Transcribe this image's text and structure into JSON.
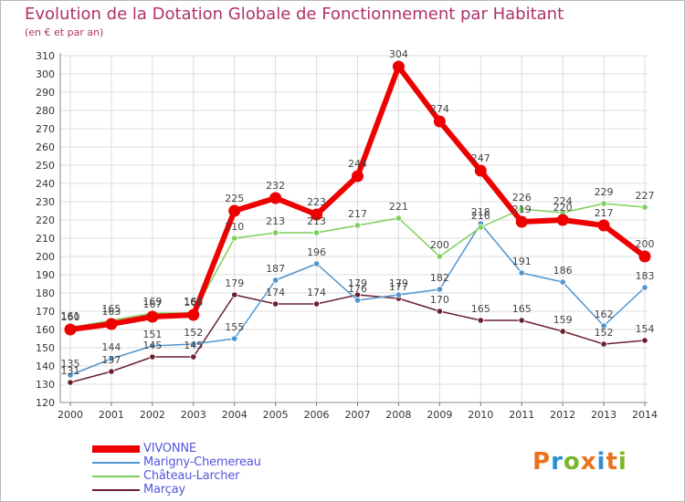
{
  "title": "Evolution de la Dotation Globale de Fonctionnement par Habitant",
  "subtitle": "(en € et par an)",
  "logo": {
    "text": "Proxiti",
    "letters": [
      "P",
      "r",
      "o",
      "x",
      "i",
      "t",
      "i"
    ],
    "colors": [
      "#e8731c",
      "#2d8fd6",
      "#7ab728",
      "#e8731c",
      "#2d8fd6",
      "#e8731c",
      "#7ab728"
    ]
  },
  "chart_data": {
    "type": "line",
    "title": "Evolution de la Dotation Globale de Fonctionnement par Habitant",
    "subtitle": "(en € et par an)",
    "x": [
      "2000",
      "2001",
      "2002",
      "2003",
      "2004",
      "2005",
      "2006",
      "2007",
      "2008",
      "2009",
      "2010",
      "2011",
      "2012",
      "2013",
      "2014"
    ],
    "ylim": [
      120,
      310
    ],
    "yticks": [
      120,
      130,
      140,
      150,
      160,
      170,
      180,
      190,
      200,
      210,
      220,
      230,
      240,
      250,
      260,
      270,
      280,
      290,
      300,
      310
    ],
    "grid": true,
    "legend_position": "bottom-left",
    "series": [
      {
        "name": "Marçay",
        "color": "#6b1f2e",
        "values": [
          131,
          137,
          145,
          145,
          179,
          174,
          174,
          179,
          177,
          170,
          165,
          165,
          159,
          152,
          154
        ]
      },
      {
        "name": "Marigny-Chemereau",
        "color": "#4f94cd",
        "values": [
          135,
          144,
          151,
          152,
          155,
          187,
          196,
          176,
          179,
          182,
          218,
          191,
          186,
          162,
          183
        ]
      },
      {
        "name": "Château-Larcher",
        "color": "#7dd05c",
        "values": [
          161,
          165,
          169,
          169,
          210,
          213,
          213,
          217,
          221,
          200,
          216,
          226,
          224,
          229,
          227
        ]
      },
      {
        "name": "VIVONNE",
        "color": "#ee0000",
        "values": [
          160,
          163,
          167,
          168,
          225,
          232,
          223,
          244,
          304,
          274,
          247,
          219,
          220,
          217,
          200
        ]
      }
    ],
    "legend_order": [
      "VIVONNE",
      "Marigny-Chemereau",
      "Château-Larcher",
      "Marçay"
    ]
  }
}
